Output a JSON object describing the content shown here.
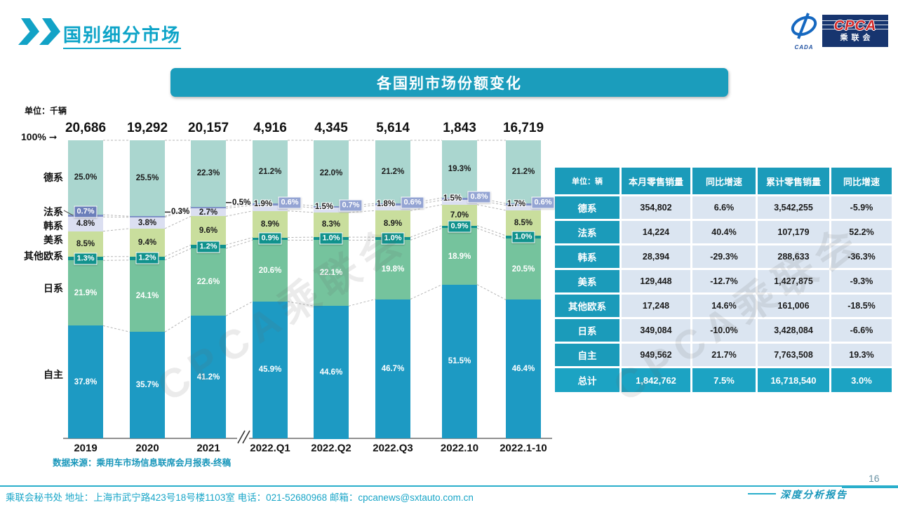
{
  "page": {
    "title": "国别细分市场",
    "banner": "各国别市场份额变化",
    "unit_label": "单位：千辆",
    "axis_100": "100%",
    "source": "数据来源：乘用车市场信息联席会月报表-终稿",
    "footer_left": "乘联会秘书处  地址：上海市武宁路423号18号楼1103室 电话：021-52680968  邮箱：cpcanews@sxtauto.com.cn",
    "footer_right": "深度分析报告",
    "page_number": "16",
    "watermark": "CPCA乘联会",
    "accent_color": "#1b9dbc"
  },
  "logo": {
    "cpca": "CPCA",
    "sub": "乘联会",
    "cada": "CADA"
  },
  "chart_data": {
    "type": "bar",
    "subtype": "stacked-100-percent",
    "unit": "千辆",
    "grid": false,
    "ylim": [
      0,
      100
    ],
    "categories": [
      "2019",
      "2020",
      "2021",
      "2022.Q1",
      "2022.Q2",
      "2022.Q3",
      "2022.10",
      "2022.1-10"
    ],
    "totals": [
      "20,686",
      "19,292",
      "20,157",
      "4,916",
      "4,345",
      "5,614",
      "1,843",
      "16,719"
    ],
    "series": [
      {
        "name": "德系",
        "color": "#aad6cf",
        "values": [
          25.0,
          25.5,
          22.3,
          21.2,
          22.0,
          21.2,
          19.3,
          21.2
        ]
      },
      {
        "name": "法系",
        "color": "#7e91c7",
        "values": [
          0.7,
          0.3,
          0.5,
          0.6,
          0.7,
          0.6,
          0.8,
          0.6
        ]
      },
      {
        "name": "韩系",
        "color": "#dbdff1",
        "values": [
          4.8,
          3.8,
          2.7,
          1.9,
          1.5,
          1.8,
          1.5,
          1.7
        ]
      },
      {
        "name": "美系",
        "color": "#c9de9d",
        "values": [
          8.5,
          9.4,
          9.6,
          8.9,
          8.3,
          8.9,
          7.0,
          8.5
        ]
      },
      {
        "name": "其他欧系",
        "color": "#10928d",
        "values": [
          1.3,
          1.2,
          1.2,
          0.9,
          1.0,
          1.0,
          0.9,
          1.0
        ]
      },
      {
        "name": "日系",
        "color": "#75c39d",
        "values": [
          21.9,
          24.1,
          22.6,
          20.6,
          22.1,
          19.8,
          18.9,
          20.5
        ]
      },
      {
        "name": "自主",
        "color": "#1d9ac3",
        "values": [
          37.8,
          35.7,
          41.2,
          45.9,
          44.6,
          46.7,
          51.5,
          46.4
        ]
      }
    ]
  },
  "table": {
    "unit_header": "单位：辆",
    "headers": [
      "本月零售销量",
      "同比增速",
      "累计零售销量",
      "同比增速"
    ],
    "rows": [
      {
        "label": "德系",
        "cells": [
          "354,802",
          "6.6%",
          "3,542,255",
          "-5.9%"
        ]
      },
      {
        "label": "法系",
        "cells": [
          "14,224",
          "40.4%",
          "107,179",
          "52.2%"
        ]
      },
      {
        "label": "韩系",
        "cells": [
          "28,394",
          "-29.3%",
          "288,633",
          "-36.3%"
        ]
      },
      {
        "label": "美系",
        "cells": [
          "129,448",
          "-12.7%",
          "1,427,875",
          "-9.3%"
        ]
      },
      {
        "label": "其他欧系",
        "cells": [
          "17,248",
          "14.6%",
          "161,006",
          "-18.5%"
        ]
      },
      {
        "label": "日系",
        "cells": [
          "349,084",
          "-10.0%",
          "3,428,084",
          "-6.6%"
        ]
      },
      {
        "label": "自主",
        "cells": [
          "949,562",
          "21.7%",
          "7,763,508",
          "19.3%"
        ]
      },
      {
        "label": "总计",
        "cells": [
          "1,842,762",
          "7.5%",
          "16,718,540",
          "3.0%"
        ],
        "is_total": true
      }
    ]
  }
}
